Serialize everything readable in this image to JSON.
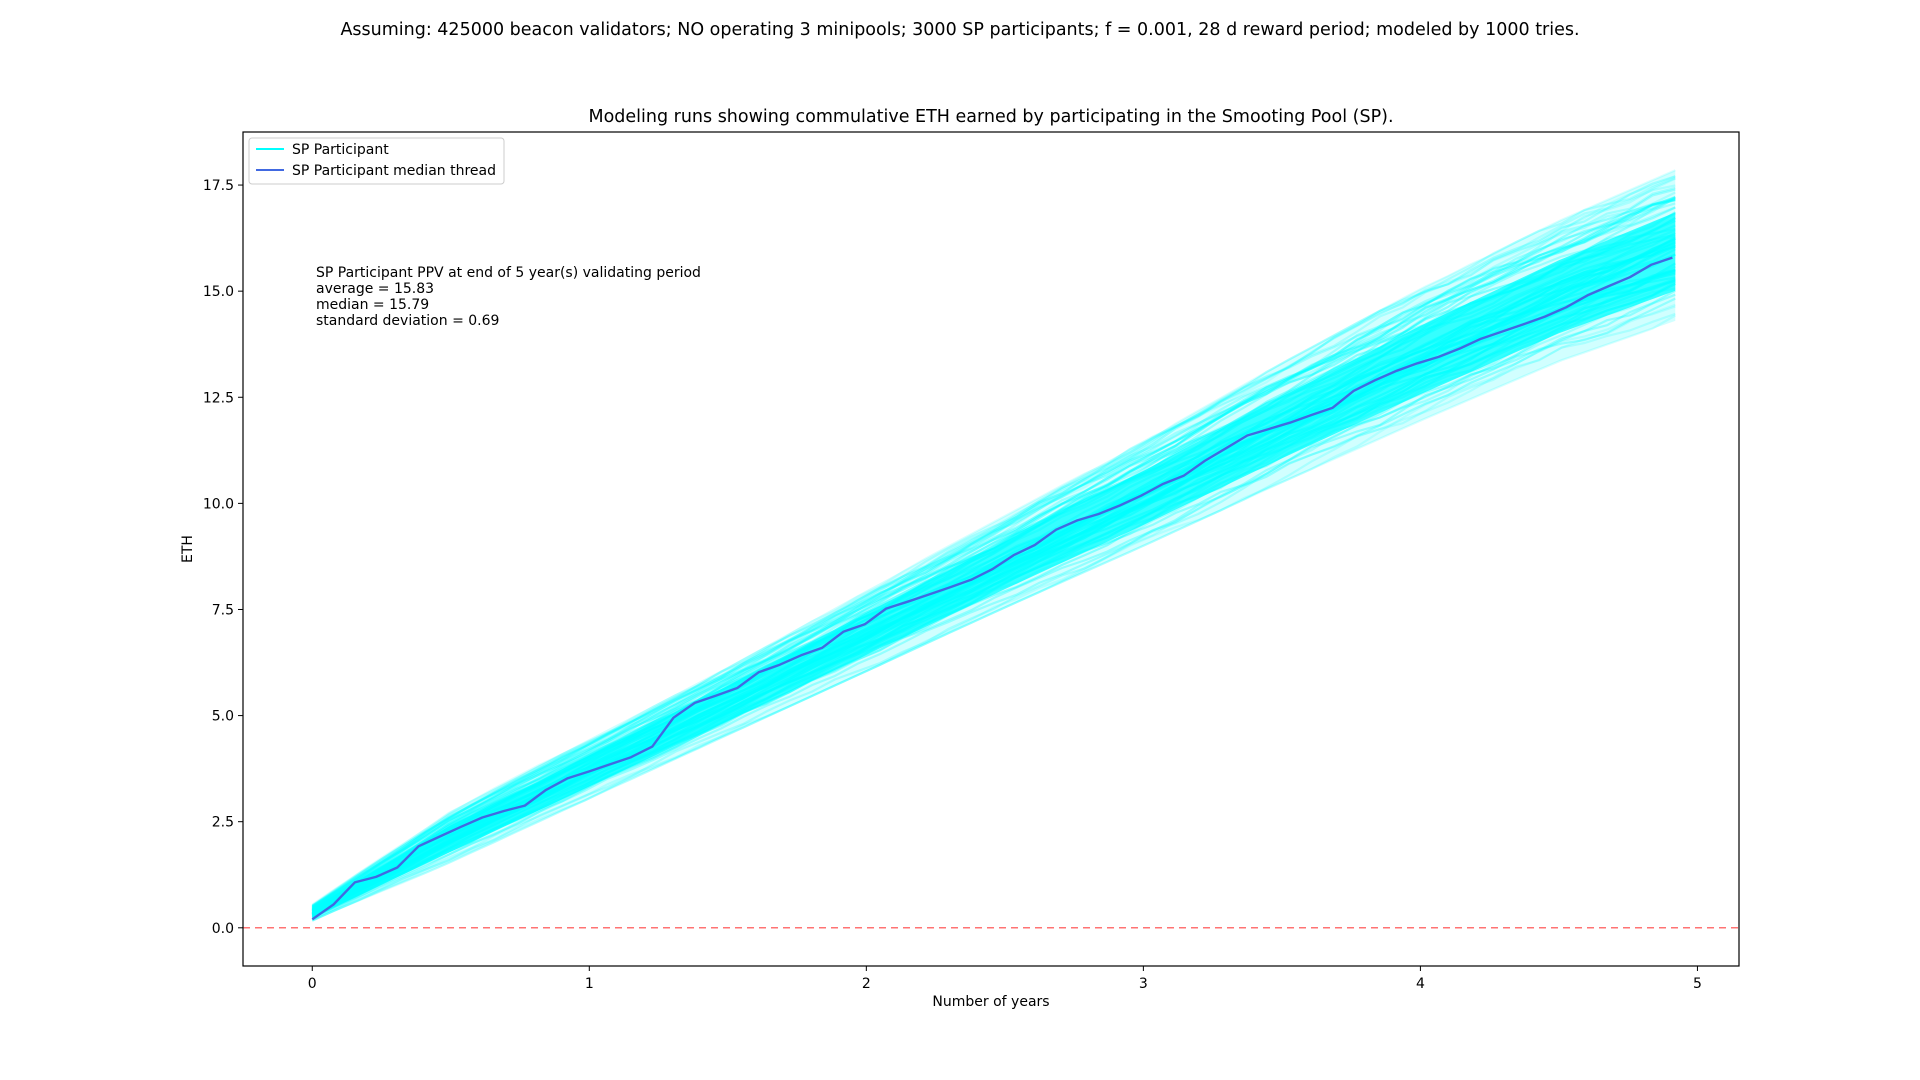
{
  "figure": {
    "suptitle": "Assuming: 425000 beacon validators; NO operating 3 minipools; 3000 SP participants; f = 0.001, 28 d reward period; modeled by 1000 tries."
  },
  "chart_data": {
    "type": "line",
    "title": "Modeling runs showing commulative ETH earned by participating in the Smooting Pool (SP).",
    "xlabel": "Number of years",
    "ylabel": "ETH",
    "xlim": [
      -0.25,
      5.15
    ],
    "ylim": [
      -0.9,
      18.75
    ],
    "xticks": [
      0,
      1,
      2,
      3,
      4,
      5
    ],
    "yticks": [
      0.0,
      2.5,
      5.0,
      7.5,
      10.0,
      12.5,
      15.0,
      17.5
    ],
    "xtick_labels": [
      "0",
      "1",
      "2",
      "3",
      "4",
      "5"
    ],
    "ytick_labels": [
      "0.0",
      "2.5",
      "5.0",
      "7.5",
      "10.0",
      "12.5",
      "15.0",
      "17.5"
    ],
    "grid": false,
    "legend_position": "top-left",
    "legend": [
      {
        "label": "SP Participant",
        "color": "#00ffff"
      },
      {
        "label": "SP Participant median thread",
        "color": "#4169e1"
      }
    ],
    "reference_line": {
      "y": 0.0,
      "color": "#ff0000",
      "style": "dashed"
    },
    "annotation": [
      "SP Participant PPV at end of 5 year(s) validating period",
      "average = 15.83",
      "median = 15.79",
      "standard deviation = 0.69"
    ],
    "series": [
      {
        "name": "SP Participant",
        "color": "#00ffff",
        "kind": "envelope",
        "x": [
          0,
          0.5,
          1,
          1.5,
          2,
          2.5,
          3,
          3.5,
          4,
          4.5,
          4.92
        ],
        "y_low": [
          0.15,
          1.55,
          3.05,
          4.55,
          6.05,
          7.55,
          9.0,
          10.5,
          11.95,
          13.35,
          14.3
        ],
        "y_high": [
          0.55,
          2.75,
          4.45,
          6.15,
          7.95,
          9.7,
          11.45,
          13.3,
          15.05,
          16.65,
          17.85
        ]
      },
      {
        "name": "SP Participant median thread",
        "color": "#4169e1",
        "x": [
          0,
          0.0767,
          0.1534,
          0.2301,
          0.3068,
          0.3836,
          0.4603,
          0.537,
          0.6137,
          0.6904,
          0.7671,
          0.8438,
          0.9205,
          0.9973,
          1.074,
          1.1507,
          1.2274,
          1.3041,
          1.3808,
          1.4575,
          1.5342,
          1.611,
          1.6877,
          1.7644,
          1.8411,
          1.9178,
          1.9945,
          2.0712,
          2.1479,
          2.2247,
          2.3014,
          2.3781,
          2.4548,
          2.5315,
          2.6082,
          2.6849,
          2.7616,
          2.8384,
          2.9151,
          2.9918,
          3.0685,
          3.1452,
          3.2219,
          3.2986,
          3.3753,
          3.4521,
          3.5288,
          3.6055,
          3.6822,
          3.7589,
          3.8356,
          3.9123,
          3.989,
          4.0658,
          4.1425,
          4.2192,
          4.2959,
          4.3726,
          4.4493,
          4.526,
          4.6027,
          4.6795,
          4.7562,
          4.8329,
          4.9096
        ],
        "y": [
          0.2,
          0.55,
          1.07,
          1.2,
          1.42,
          1.92,
          2.15,
          2.38,
          2.6,
          2.75,
          2.88,
          3.25,
          3.52,
          3.68,
          3.85,
          4.02,
          4.27,
          4.95,
          5.3,
          5.47,
          5.65,
          6.02,
          6.2,
          6.42,
          6.6,
          6.98,
          7.15,
          7.52,
          7.68,
          7.85,
          8.02,
          8.2,
          8.45,
          8.78,
          9.02,
          9.38,
          9.6,
          9.75,
          9.95,
          10.18,
          10.45,
          10.65,
          11.0,
          11.3,
          11.6,
          11.75,
          11.9,
          12.08,
          12.25,
          12.65,
          12.9,
          13.12,
          13.3,
          13.45,
          13.65,
          13.88,
          14.05,
          14.22,
          14.4,
          14.62,
          14.9,
          15.12,
          15.33,
          15.62,
          15.79
        ]
      }
    ]
  }
}
